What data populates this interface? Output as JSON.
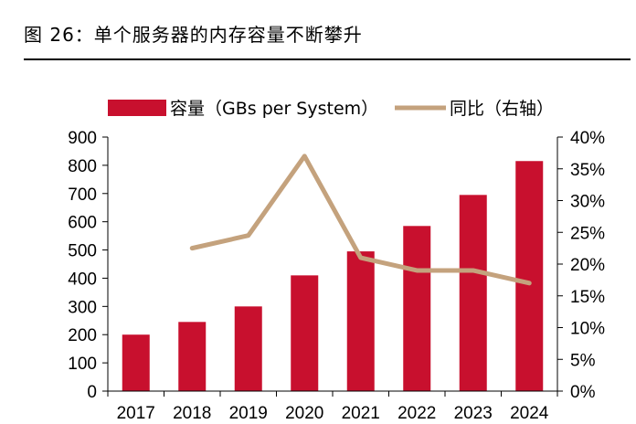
{
  "figure_title": "图 26：单个服务器的内存容量不断攀升",
  "colors": {
    "bar": "#c8102e",
    "line": "#c4a27d",
    "axis": "#000000"
  },
  "chart_data": {
    "type": "bar",
    "title": "",
    "categories": [
      "2017",
      "2018",
      "2019",
      "2020",
      "2021",
      "2022",
      "2023",
      "2024"
    ],
    "series": [
      {
        "name": "容量（GBs per System）",
        "type": "bar",
        "axis": "left",
        "values": [
          200,
          245,
          300,
          410,
          495,
          585,
          695,
          815
        ]
      },
      {
        "name": "同比（右轴）",
        "type": "line",
        "axis": "right",
        "values": [
          null,
          22.5,
          24.5,
          37,
          21,
          19,
          19,
          17
        ]
      }
    ],
    "yleft": {
      "lim": [
        0,
        900
      ],
      "ticks": [
        0,
        100,
        200,
        300,
        400,
        500,
        600,
        700,
        800,
        900
      ],
      "tick_labels": [
        "0",
        "100",
        "200",
        "300",
        "400",
        "500",
        "600",
        "700",
        "800",
        "900"
      ]
    },
    "yright": {
      "lim": [
        0,
        40
      ],
      "ticks": [
        0,
        5,
        10,
        15,
        20,
        25,
        30,
        35,
        40
      ],
      "tick_labels": [
        "0%",
        "5%",
        "10%",
        "15%",
        "20%",
        "25%",
        "30%",
        "35%",
        "40%"
      ]
    },
    "xlabel": "",
    "ylabel": "",
    "grid": false,
    "legend": "top"
  }
}
